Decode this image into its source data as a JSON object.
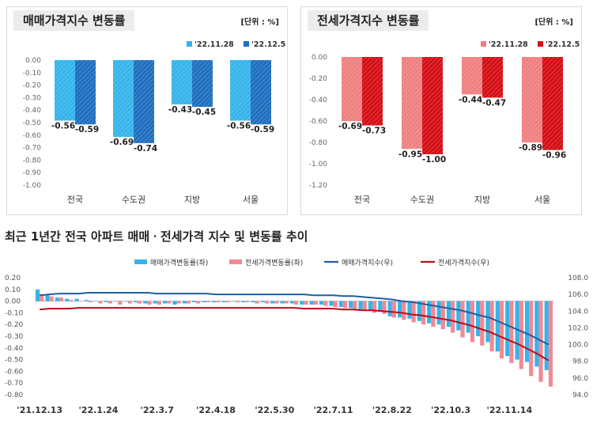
{
  "chart_data": [
    {
      "type": "bar",
      "title": "매매가격지수 변동률",
      "unit": "[단위 : %]",
      "categories": [
        "전국",
        "수도권",
        "지방",
        "서울"
      ],
      "series": [
        {
          "name": "'22.11.28",
          "values": [
            -0.56,
            -0.69,
            -0.43,
            -0.56
          ],
          "labels": [
            "-0.56",
            "-0.69",
            "-0.43",
            "-0.56"
          ],
          "color": "#35b4ea"
        },
        {
          "name": "'22.12.5",
          "values": [
            -0.59,
            -0.74,
            -0.45,
            -0.59
          ],
          "labels": [
            "-0.59",
            "-0.74",
            "-0.45",
            "-0.59"
          ],
          "color": "#1f6fbf"
        }
      ],
      "yticks": [
        "0.00",
        "-0.10",
        "-0.20",
        "-0.30",
        "-0.40",
        "-0.50",
        "-0.60",
        "-0.70",
        "-0.80",
        "-0.90",
        "-1.00"
      ],
      "ylim": [
        -1.0,
        0.0
      ]
    },
    {
      "type": "bar",
      "title": "전세가격지수 변동률",
      "unit": "[단위 : %]",
      "categories": [
        "전국",
        "수도권",
        "지방",
        "서울"
      ],
      "series": [
        {
          "name": "'22.11.28",
          "values": [
            -0.69,
            -0.95,
            -0.44,
            -0.89
          ],
          "labels": [
            "-0.69",
            "-0.95",
            "-0.44",
            "-0.89"
          ],
          "color": "#f08080"
        },
        {
          "name": "'22.12.5",
          "values": [
            -0.73,
            -1.0,
            -0.47,
            -0.96
          ],
          "labels": [
            "-0.73",
            "-1.00",
            "-0.47",
            "-0.96"
          ],
          "color": "#d40f15"
        }
      ],
      "yticks": [
        "0.00",
        "-0.20",
        "-0.40",
        "-0.60",
        "-0.80",
        "-1.00",
        "-1.20"
      ],
      "ylim": [
        -1.2,
        0.0
      ]
    },
    {
      "type": "bar+line",
      "title": "최근 1년간 전국 아파트 매매ㆍ전세가격 지수 및 변동률 추이",
      "xtick_labels": [
        "'21.12.13",
        "'22.1.24",
        "'22.3.7",
        "'22.4.18",
        "'22.5.30",
        "'22.7.11",
        "'22.8.22",
        "'22.10.3",
        "'22.11.14"
      ],
      "xtick_index": [
        0,
        6,
        12,
        18,
        24,
        30,
        36,
        42,
        48
      ],
      "left_yticks": [
        "0.20",
        "0.10",
        "0.00",
        "-0.10",
        "-0.20",
        "-0.30",
        "-0.40",
        "-0.50",
        "-0.60",
        "-0.70",
        "-0.80"
      ],
      "right_yticks": [
        "108.0",
        "106.0",
        "104.0",
        "102.0",
        "100.0",
        "98.0",
        "96.0",
        "94.0"
      ],
      "ylim_left": [
        -0.8,
        0.2
      ],
      "ylim_right": [
        94.0,
        108.0
      ],
      "legend": [
        "매매가격변동률(좌)",
        "전세가격변동률(좌)",
        "매매가격지수(우)",
        "전세가격지수(우)"
      ],
      "colors": {
        "sale_rate": "#35b4ea",
        "jeonse_rate": "#f08a94",
        "sale_index": "#1f5f9f",
        "jeonse_index": "#b3101a"
      },
      "sale_rate": [
        0.1,
        0.05,
        0.03,
        0.02,
        0.02,
        0.01,
        0.0,
        -0.01,
        0.0,
        0.0,
        -0.01,
        -0.02,
        -0.02,
        -0.02,
        -0.03,
        -0.02,
        -0.01,
        -0.01,
        -0.01,
        -0.01,
        0.0,
        -0.01,
        -0.01,
        -0.01,
        -0.02,
        -0.02,
        -0.02,
        -0.03,
        -0.03,
        -0.03,
        -0.04,
        -0.05,
        -0.06,
        -0.07,
        -0.08,
        -0.09,
        -0.13,
        -0.14,
        -0.15,
        -0.17,
        -0.19,
        -0.2,
        -0.22,
        -0.25,
        -0.27,
        -0.3,
        -0.35,
        -0.43,
        -0.47,
        -0.5,
        -0.52,
        -0.56,
        -0.59
      ],
      "jeonse_rate": [
        0.06,
        0.04,
        0.03,
        0.01,
        0.0,
        -0.01,
        -0.02,
        -0.02,
        -0.03,
        -0.02,
        -0.02,
        -0.03,
        -0.03,
        -0.02,
        -0.02,
        -0.02,
        -0.02,
        -0.01,
        -0.01,
        -0.01,
        -0.01,
        -0.01,
        -0.02,
        -0.02,
        -0.02,
        -0.02,
        -0.03,
        -0.03,
        -0.03,
        -0.04,
        -0.05,
        -0.06,
        -0.07,
        -0.08,
        -0.1,
        -0.11,
        -0.14,
        -0.16,
        -0.18,
        -0.2,
        -0.22,
        -0.24,
        -0.27,
        -0.31,
        -0.35,
        -0.38,
        -0.43,
        -0.49,
        -0.53,
        -0.58,
        -0.64,
        -0.69,
        -0.73
      ],
      "sale_index": [
        105.9,
        106.0,
        106.1,
        106.1,
        106.1,
        106.2,
        106.2,
        106.2,
        106.2,
        106.2,
        106.2,
        106.2,
        106.1,
        106.1,
        106.1,
        106.1,
        106.1,
        106.1,
        106.0,
        106.0,
        106.0,
        106.0,
        106.0,
        106.0,
        106.0,
        106.0,
        106.0,
        106.0,
        105.9,
        105.9,
        105.9,
        105.8,
        105.8,
        105.7,
        105.6,
        105.5,
        105.4,
        105.2,
        105.1,
        104.9,
        104.7,
        104.5,
        104.3,
        104.1,
        103.8,
        103.5,
        103.2,
        102.7,
        102.2,
        101.7,
        101.2,
        100.6,
        100.0
      ],
      "jeonse_index": [
        104.2,
        104.3,
        104.3,
        104.3,
        104.4,
        104.4,
        104.4,
        104.4,
        104.4,
        104.4,
        104.4,
        104.4,
        104.4,
        104.4,
        104.4,
        104.4,
        104.4,
        104.4,
        104.4,
        104.4,
        104.4,
        104.4,
        104.4,
        104.4,
        104.4,
        104.4,
        104.4,
        104.3,
        104.3,
        104.3,
        104.3,
        104.2,
        104.2,
        104.1,
        104.1,
        104.0,
        103.9,
        103.8,
        103.6,
        103.5,
        103.3,
        103.1,
        102.9,
        102.6,
        102.3,
        101.9,
        101.5,
        101.0,
        100.5,
        100.0,
        99.4,
        98.8,
        98.1
      ]
    }
  ]
}
